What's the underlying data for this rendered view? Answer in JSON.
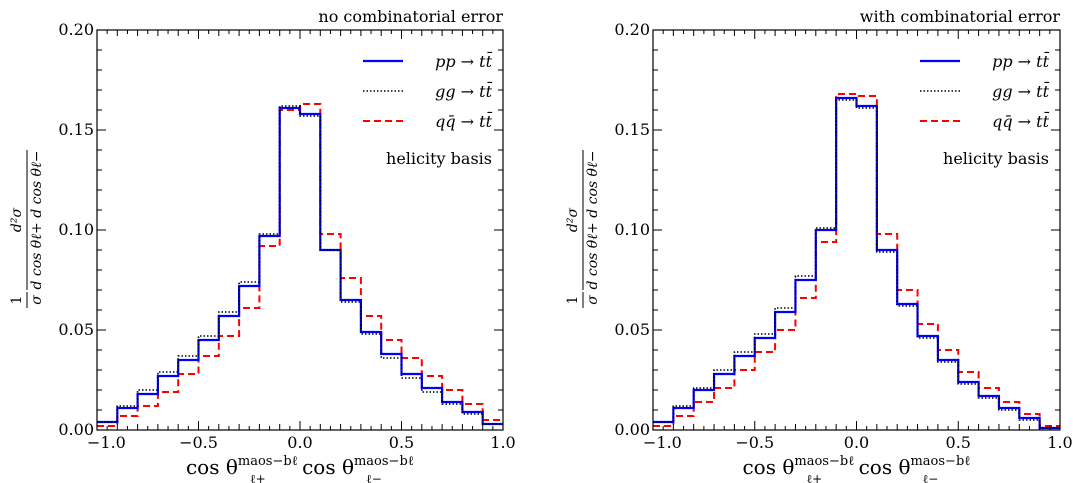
{
  "chart_data": [
    {
      "type": "line",
      "annotation": "no combinatorial error",
      "basis_label": "helicity basis",
      "xlim": [
        -1.0,
        1.0
      ],
      "ylim": [
        0.0,
        0.2
      ],
      "xticks": [
        "−1.0",
        "−0.5",
        "0.0",
        "0.5",
        "1.0"
      ],
      "yticks": [
        "0.00",
        "0.05",
        "0.10",
        "0.15",
        "0.20"
      ],
      "ytick_values": [
        0.0,
        0.05,
        0.1,
        0.15,
        0.2
      ],
      "xtick_values": [
        -1.0,
        -0.5,
        0.0,
        0.5,
        1.0
      ],
      "bin_edges": [
        -1.0,
        -0.9,
        -0.8,
        -0.7,
        -0.6,
        -0.5,
        -0.4,
        -0.3,
        -0.2,
        -0.1,
        0.0,
        0.1,
        0.2,
        0.3,
        0.4,
        0.5,
        0.6,
        0.7,
        0.8,
        0.9,
        1.0
      ],
      "series": [
        {
          "name": "pp → tt̄",
          "style": "solid",
          "color": "#0000ff",
          "values": [
            0.004,
            0.011,
            0.018,
            0.027,
            0.035,
            0.045,
            0.057,
            0.072,
            0.097,
            0.161,
            0.158,
            0.09,
            0.065,
            0.049,
            0.038,
            0.028,
            0.021,
            0.014,
            0.009,
            0.003
          ]
        },
        {
          "name": "gg → tt̄",
          "style": "dotted",
          "color": "#000000",
          "values": [
            0.004,
            0.012,
            0.02,
            0.029,
            0.037,
            0.047,
            0.059,
            0.074,
            0.098,
            0.162,
            0.157,
            0.09,
            0.064,
            0.048,
            0.036,
            0.026,
            0.019,
            0.013,
            0.008,
            0.003
          ]
        },
        {
          "name": "qq̄ → tt̄",
          "style": "dashed",
          "color": "#ff0000",
          "values": [
            0.002,
            0.007,
            0.012,
            0.019,
            0.028,
            0.037,
            0.047,
            0.061,
            0.092,
            0.16,
            0.163,
            0.098,
            0.076,
            0.057,
            0.045,
            0.036,
            0.027,
            0.02,
            0.013,
            0.005
          ]
        }
      ],
      "legend": [
        {
          "label": "pp → tt̄",
          "style": "solid",
          "color": "#0000ff"
        },
        {
          "label": "gg → tt̄",
          "style": "dotted",
          "color": "#000000"
        },
        {
          "label": "qq̄ → tt̄",
          "style": "dashed",
          "color": "#ff0000"
        }
      ]
    },
    {
      "type": "line",
      "annotation": "with combinatorial error",
      "basis_label": "helicity basis",
      "xlim": [
        -1.0,
        1.0
      ],
      "ylim": [
        0.0,
        0.2
      ],
      "xticks": [
        "−1.0",
        "−0.5",
        "0.0",
        "0.5",
        "1.0"
      ],
      "yticks": [
        "0.00",
        "0.05",
        "0.10",
        "0.15",
        "0.20"
      ],
      "ytick_values": [
        0.0,
        0.05,
        0.1,
        0.15,
        0.2
      ],
      "xtick_values": [
        -1.0,
        -0.5,
        0.0,
        0.5,
        1.0
      ],
      "bin_edges": [
        -1.0,
        -0.9,
        -0.8,
        -0.7,
        -0.6,
        -0.5,
        -0.4,
        -0.3,
        -0.2,
        -0.1,
        0.0,
        0.1,
        0.2,
        0.3,
        0.4,
        0.5,
        0.6,
        0.7,
        0.8,
        0.9,
        1.0
      ],
      "series": [
        {
          "name": "pp → tt̄",
          "style": "solid",
          "color": "#0000ff",
          "values": [
            0.004,
            0.011,
            0.02,
            0.028,
            0.037,
            0.046,
            0.059,
            0.075,
            0.1,
            0.166,
            0.162,
            0.09,
            0.063,
            0.047,
            0.035,
            0.024,
            0.017,
            0.011,
            0.006,
            0.001
          ]
        },
        {
          "name": "gg → tt̄",
          "style": "dotted",
          "color": "#000000",
          "values": [
            0.004,
            0.012,
            0.021,
            0.03,
            0.039,
            0.048,
            0.061,
            0.077,
            0.101,
            0.165,
            0.161,
            0.089,
            0.062,
            0.046,
            0.034,
            0.023,
            0.016,
            0.01,
            0.005,
            0.001
          ]
        },
        {
          "name": "qq̄ → tt̄",
          "style": "dashed",
          "color": "#ff0000",
          "values": [
            0.002,
            0.007,
            0.014,
            0.021,
            0.03,
            0.039,
            0.05,
            0.066,
            0.094,
            0.168,
            0.167,
            0.098,
            0.07,
            0.053,
            0.04,
            0.029,
            0.021,
            0.014,
            0.008,
            0.002
          ]
        }
      ],
      "legend": [
        {
          "label": "pp → tt̄",
          "style": "solid",
          "color": "#0000ff"
        },
        {
          "label": "gg → tt̄",
          "style": "dotted",
          "color": "#000000"
        },
        {
          "label": "qq̄ → tt̄",
          "style": "dashed",
          "color": "#ff0000"
        }
      ]
    }
  ],
  "axis_labels": {
    "x_cos": "cos θ",
    "x_sup": "maos−bℓ",
    "x_sub1": "ℓ+",
    "x_sub2": "ℓ−",
    "y_num": "1",
    "y_den_sigma": "σ",
    "y_d2sigma": "d²σ",
    "y_den": "d cos θℓ+ d cos θℓ−"
  }
}
